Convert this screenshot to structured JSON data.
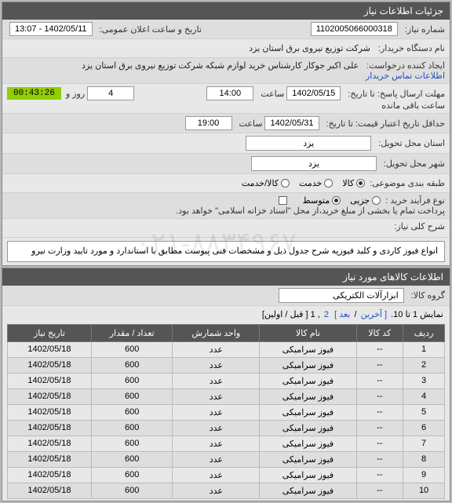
{
  "panels": {
    "info_title": "جزئیات اطلاعات نیاز",
    "items_title": "اطلاعات کالاهای مورد نیاز"
  },
  "fields": {
    "need_number_label": "شماره نیاز:",
    "need_number": "1102005066000318",
    "announce_label": "تاریخ و ساعت اعلان عمومی:",
    "announce_value": "1402/05/11 - 13:07",
    "buyer_org_label": "نام دستگاه خریدار:",
    "buyer_org": "شرکت توزیع نیروی برق استان یزد",
    "requester_label": "ایجاد کننده درخواست:",
    "requester": "علی اکبر جوکار  کارشناس خرید لوازم شبکه  شرکت توزیع نیروی برق استان یزد",
    "buyer_contact_link": "اطلاعات تماس خریدار",
    "deadline_label": "مهلت ارسال پاسخ: تا تاریخ:",
    "deadline_date": "1402/05/15",
    "hour_label": "ساعت",
    "deadline_hour": "14:00",
    "day_and_label": "روز و",
    "day_count": "4",
    "remaining_label": "ساعت باقی مانده",
    "remaining_time": "00:43:26",
    "price_validity_label": "حداقل تاریخ اعتبار قیمت: تا تاریخ:",
    "price_validity_date": "1402/05/31",
    "price_validity_hour": "19:00",
    "delivery_province_label": "استان محل تحویل:",
    "delivery_province": "یزد",
    "delivery_city_label": "شهر محل تحویل:",
    "delivery_city": "یزد",
    "subject_type_label": "طبقه بندی موضوعی:",
    "goods_radio": "کالا",
    "service_radio": "خدمت",
    "both_radio": "کالا/خدمت",
    "process_label": "نوع فرآیند خرید :",
    "small_radio": "جزیی",
    "medium_radio": "متوسط",
    "payment_note": "پرداخت تمام یا بخشی از مبلغ خرید،از محل \"اسناد خزانه اسلامی\" خواهد بود.",
    "description_label": "شرح کلی نیاز:",
    "description": "انواع فیوز کاردی و کلید فیوزپه شرح جدول ذیل و مشخصات فنی پیوست مطابق با استاندارد و مورد تایید وزارت نیرو",
    "group_label": "گروه کالا:",
    "group_value": "ابزارآلات الکتریکی"
  },
  "pager": {
    "text_prefix": "نمایش 1 تا 10.",
    "last": "[ آخرین",
    "next": "بعد ]",
    "sep": "/",
    "page2": "2",
    "page1": "1",
    "first_prev": "[ قبل / اولین]"
  },
  "table": {
    "headers": [
      "ردیف",
      "کد کالا",
      "نام کالا",
      "واحد شمارش",
      "تعداد / مقدار",
      "تاریخ نیاز"
    ],
    "rows": [
      [
        "1",
        "--",
        "فیوز سرامیکی",
        "عدد",
        "600",
        "1402/05/18"
      ],
      [
        "2",
        "--",
        "فیوز سرامیکی",
        "عدد",
        "600",
        "1402/05/18"
      ],
      [
        "3",
        "--",
        "فیوز سرامیکی",
        "عدد",
        "600",
        "1402/05/18"
      ],
      [
        "4",
        "--",
        "فیوز سرامیکی",
        "عدد",
        "600",
        "1402/05/18"
      ],
      [
        "5",
        "--",
        "فیوز سرامیکی",
        "عدد",
        "600",
        "1402/05/18"
      ],
      [
        "6",
        "--",
        "فیوز سرامیکی",
        "عدد",
        "600",
        "1402/05/18"
      ],
      [
        "7",
        "--",
        "فیوز سرامیکی",
        "عدد",
        "600",
        "1402/05/18"
      ],
      [
        "8",
        "--",
        "فیوز سرامیکی",
        "عدد",
        "600",
        "1402/05/18"
      ],
      [
        "9",
        "--",
        "فیوز سرامیکی",
        "عدد",
        "600",
        "1402/05/18"
      ],
      [
        "10",
        "--",
        "فیوز سرامیکی",
        "عدد",
        "600",
        "1402/05/18"
      ]
    ]
  },
  "watermark": "۰۲۱-۸۸۳۴۹۶۷"
}
